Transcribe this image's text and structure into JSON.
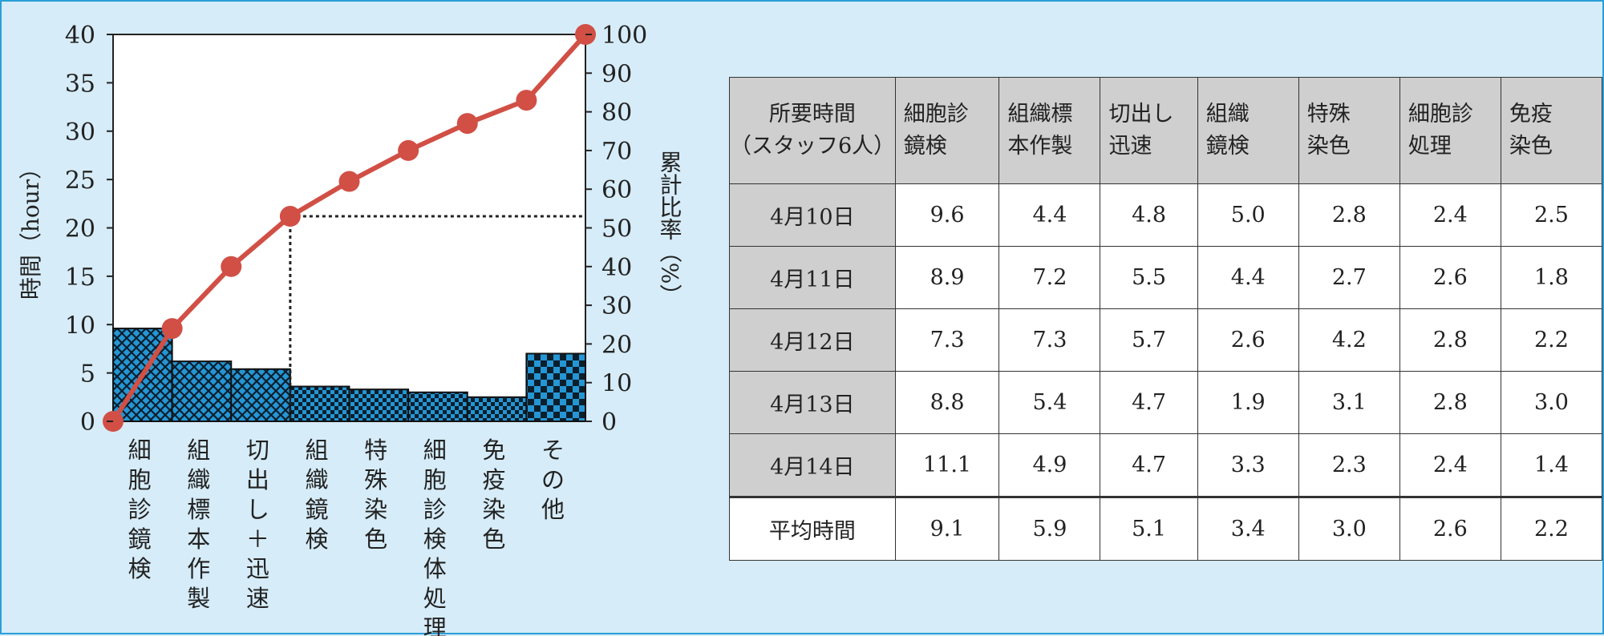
{
  "chart_data": {
    "type": "bar+line",
    "left_axis_label": "時間（hour）",
    "right_axis_label": "累計比率（%）",
    "left_ylim": [
      0,
      40
    ],
    "left_ticks": [
      0,
      5,
      10,
      15,
      20,
      25,
      30,
      35,
      40
    ],
    "right_ylim": [
      0,
      100
    ],
    "right_ticks": [
      0,
      10,
      20,
      30,
      40,
      50,
      60,
      70,
      80,
      90,
      100
    ],
    "categories": [
      "細胞診鏡検",
      "組織標本作製",
      "切出し＋迅速",
      "組織鏡検",
      "特殊染色",
      "細胞診検体処理",
      "免疫染色",
      "その他"
    ],
    "bar_values": [
      9.6,
      6.2,
      5.4,
      3.6,
      3.3,
      3.0,
      2.5,
      7.0
    ],
    "bar_fills": [
      "hatch",
      "hatch",
      "hatch",
      "checker",
      "checker",
      "checker",
      "checker",
      "checker-large"
    ],
    "cumulative_percent": [
      0,
      24,
      40,
      53,
      62,
      70,
      77,
      83,
      100
    ],
    "threshold_percent": 53,
    "line_color": "#d14f45",
    "bar_color": "#2596d4"
  },
  "table": {
    "corner": [
      "所要時間",
      "（スタッフ6人）"
    ],
    "headers": [
      [
        "細胞診",
        "鏡検"
      ],
      [
        "組織標",
        "本作製"
      ],
      [
        "切出し",
        "迅速"
      ],
      [
        "組織",
        "鏡検"
      ],
      [
        "特殊",
        "染色"
      ],
      [
        "細胞診",
        "処理"
      ],
      [
        "免疫",
        "染色"
      ]
    ],
    "rows": [
      {
        "date": "4月10日",
        "values": [
          "9.6",
          "4.4",
          "4.8",
          "5.0",
          "2.8",
          "2.4",
          "2.5"
        ]
      },
      {
        "date": "4月11日",
        "values": [
          "8.9",
          "7.2",
          "5.5",
          "4.4",
          "2.7",
          "2.6",
          "1.8"
        ]
      },
      {
        "date": "4月12日",
        "values": [
          "7.3",
          "7.3",
          "5.7",
          "2.6",
          "4.2",
          "2.8",
          "2.2"
        ]
      },
      {
        "date": "4月13日",
        "values": [
          "8.8",
          "5.4",
          "4.7",
          "1.9",
          "3.1",
          "2.8",
          "3.0"
        ]
      },
      {
        "date": "4月14日",
        "values": [
          "11.1",
          "4.9",
          "4.7",
          "3.3",
          "2.3",
          "2.4",
          "1.4"
        ]
      }
    ],
    "average": {
      "label": "平均時間",
      "values": [
        "9.1",
        "5.9",
        "5.1",
        "3.4",
        "3.0",
        "2.6",
        "2.2"
      ]
    }
  }
}
